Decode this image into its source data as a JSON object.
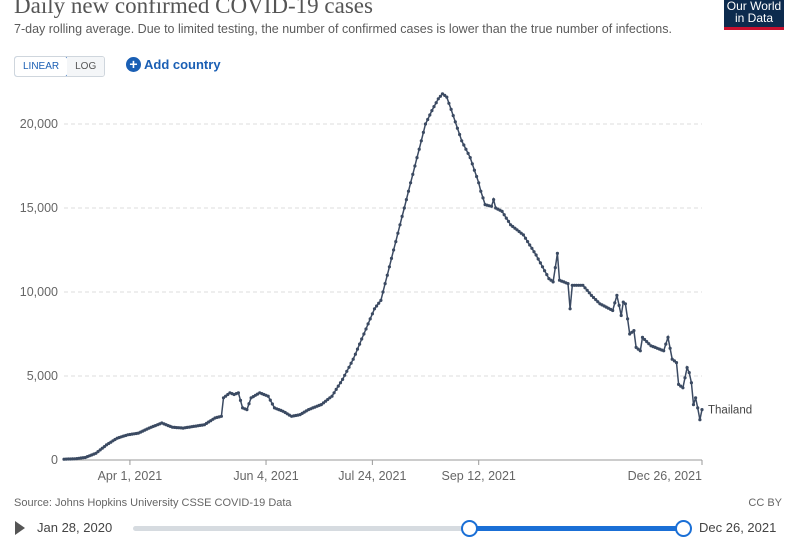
{
  "header": {
    "title": "Daily new confirmed COVID-19 cases",
    "subtitle": "7-day rolling average. Due to limited testing, the number of confirmed cases is lower than the true number of infections.",
    "logo_line1": "Our World",
    "logo_line2": "in Data"
  },
  "controls": {
    "linear_label": "LINEAR",
    "log_label": "LOG",
    "active_scale": "linear",
    "add_country_label": "Add country"
  },
  "footer": {
    "source": "Source: Johns Hopkins University CSSE COVID-19 Data",
    "license": "CC BY"
  },
  "timeline": {
    "start_label": "Jan 28, 2020",
    "end_label": "Dec 26, 2021",
    "range_start_fraction": 0.61,
    "range_end_fraction": 1.0
  },
  "colors": {
    "series": "#3b4a62",
    "accent": "#1a6fd6",
    "logo_bg": "#0d2b4e",
    "logo_stripe": "#c8102e"
  },
  "chart_data": {
    "type": "line",
    "title": "Daily new confirmed COVID-19 cases",
    "subtitle": "7-day rolling average. Due to limited testing, the number of confirmed cases is lower than the true number of infections.",
    "xlabel": "",
    "ylabel": "",
    "x_start": "2021-03-01",
    "x_end": "2021-12-26",
    "ylim": [
      0,
      22000
    ],
    "yticks": [
      0,
      5000,
      10000,
      15000,
      20000
    ],
    "ytick_labels": [
      "0",
      "5,000",
      "10,000",
      "15,000",
      "20,000"
    ],
    "xticks": [
      "2021-04-01",
      "2021-06-04",
      "2021-07-24",
      "2021-09-12",
      "2021-12-26"
    ],
    "xtick_labels": [
      "Apr 1, 2021",
      "Jun 4, 2021",
      "Jul 24, 2021",
      "Sep 12, 2021",
      "Dec 26, 2021"
    ],
    "grid": "horizontal dashed",
    "series": [
      {
        "name": "Thailand",
        "points": [
          [
            "2021-03-01",
            50
          ],
          [
            "2021-03-06",
            70
          ],
          [
            "2021-03-11",
            150
          ],
          [
            "2021-03-16",
            400
          ],
          [
            "2021-03-21",
            900
          ],
          [
            "2021-03-26",
            1300
          ],
          [
            "2021-03-31",
            1500
          ],
          [
            "2021-04-05",
            1600
          ],
          [
            "2021-04-10",
            1900
          ],
          [
            "2021-04-16",
            2200
          ],
          [
            "2021-04-21",
            1950
          ],
          [
            "2021-04-26",
            1900
          ],
          [
            "2021-05-01",
            2000
          ],
          [
            "2021-05-06",
            2100
          ],
          [
            "2021-05-11",
            2500
          ],
          [
            "2021-05-14",
            2600
          ],
          [
            "2021-05-15",
            3700
          ],
          [
            "2021-05-17",
            3900
          ],
          [
            "2021-05-18",
            4000
          ],
          [
            "2021-05-20",
            3900
          ],
          [
            "2021-05-22",
            4000
          ],
          [
            "2021-05-24",
            3100
          ],
          [
            "2021-05-26",
            3000
          ],
          [
            "2021-05-28",
            3700
          ],
          [
            "2021-06-01",
            4000
          ],
          [
            "2021-06-05",
            3800
          ],
          [
            "2021-06-08",
            3100
          ],
          [
            "2021-06-12",
            2900
          ],
          [
            "2021-06-16",
            2600
          ],
          [
            "2021-06-20",
            2700
          ],
          [
            "2021-06-24",
            3000
          ],
          [
            "2021-06-30",
            3300
          ],
          [
            "2021-07-05",
            3800
          ],
          [
            "2021-07-10",
            4800
          ],
          [
            "2021-07-15",
            6000
          ],
          [
            "2021-07-20",
            7500
          ],
          [
            "2021-07-25",
            9000
          ],
          [
            "2021-07-28",
            9500
          ],
          [
            "2021-07-31",
            11000
          ],
          [
            "2021-08-04",
            13000
          ],
          [
            "2021-08-08",
            15000
          ],
          [
            "2021-08-12",
            17000
          ],
          [
            "2021-08-15",
            18500
          ],
          [
            "2021-08-18",
            20000
          ],
          [
            "2021-08-21",
            20800
          ],
          [
            "2021-08-24",
            21500
          ],
          [
            "2021-08-26",
            21800
          ],
          [
            "2021-08-28",
            21600
          ],
          [
            "2021-08-31",
            20500
          ],
          [
            "2021-09-04",
            19000
          ],
          [
            "2021-09-08",
            18000
          ],
          [
            "2021-09-12",
            16500
          ],
          [
            "2021-09-13",
            16000
          ],
          [
            "2021-09-15",
            15200
          ],
          [
            "2021-09-18",
            15100
          ],
          [
            "2021-09-19",
            15500
          ],
          [
            "2021-09-20",
            15000
          ],
          [
            "2021-09-23",
            14800
          ],
          [
            "2021-09-27",
            14000
          ],
          [
            "2021-10-03",
            13400
          ],
          [
            "2021-10-09",
            12200
          ],
          [
            "2021-10-15",
            10800
          ],
          [
            "2021-10-17",
            10600
          ],
          [
            "2021-10-19",
            12300
          ],
          [
            "2021-10-20",
            10700
          ],
          [
            "2021-10-24",
            10500
          ],
          [
            "2021-10-25",
            9000
          ],
          [
            "2021-10-26",
            10400
          ],
          [
            "2021-10-31",
            10400
          ],
          [
            "2021-11-04",
            9800
          ],
          [
            "2021-11-08",
            9300
          ],
          [
            "2021-11-14",
            8900
          ],
          [
            "2021-11-16",
            9800
          ],
          [
            "2021-11-18",
            8600
          ],
          [
            "2021-11-19",
            9400
          ],
          [
            "2021-11-20",
            9300
          ],
          [
            "2021-11-22",
            7500
          ],
          [
            "2021-11-24",
            7700
          ],
          [
            "2021-11-25",
            6700
          ],
          [
            "2021-11-27",
            6500
          ],
          [
            "2021-11-28",
            7300
          ],
          [
            "2021-12-02",
            6800
          ],
          [
            "2021-12-08",
            6500
          ],
          [
            "2021-12-10",
            7300
          ],
          [
            "2021-12-12",
            6000
          ],
          [
            "2021-12-14",
            5800
          ],
          [
            "2021-12-15",
            4500
          ],
          [
            "2021-12-17",
            4300
          ],
          [
            "2021-12-19",
            5500
          ],
          [
            "2021-12-20",
            5200
          ],
          [
            "2021-12-21",
            4600
          ],
          [
            "2021-12-22",
            3300
          ],
          [
            "2021-12-23",
            3700
          ],
          [
            "2021-12-24",
            3100
          ],
          [
            "2021-12-25",
            2400
          ],
          [
            "2021-12-26",
            3000
          ]
        ]
      }
    ]
  }
}
